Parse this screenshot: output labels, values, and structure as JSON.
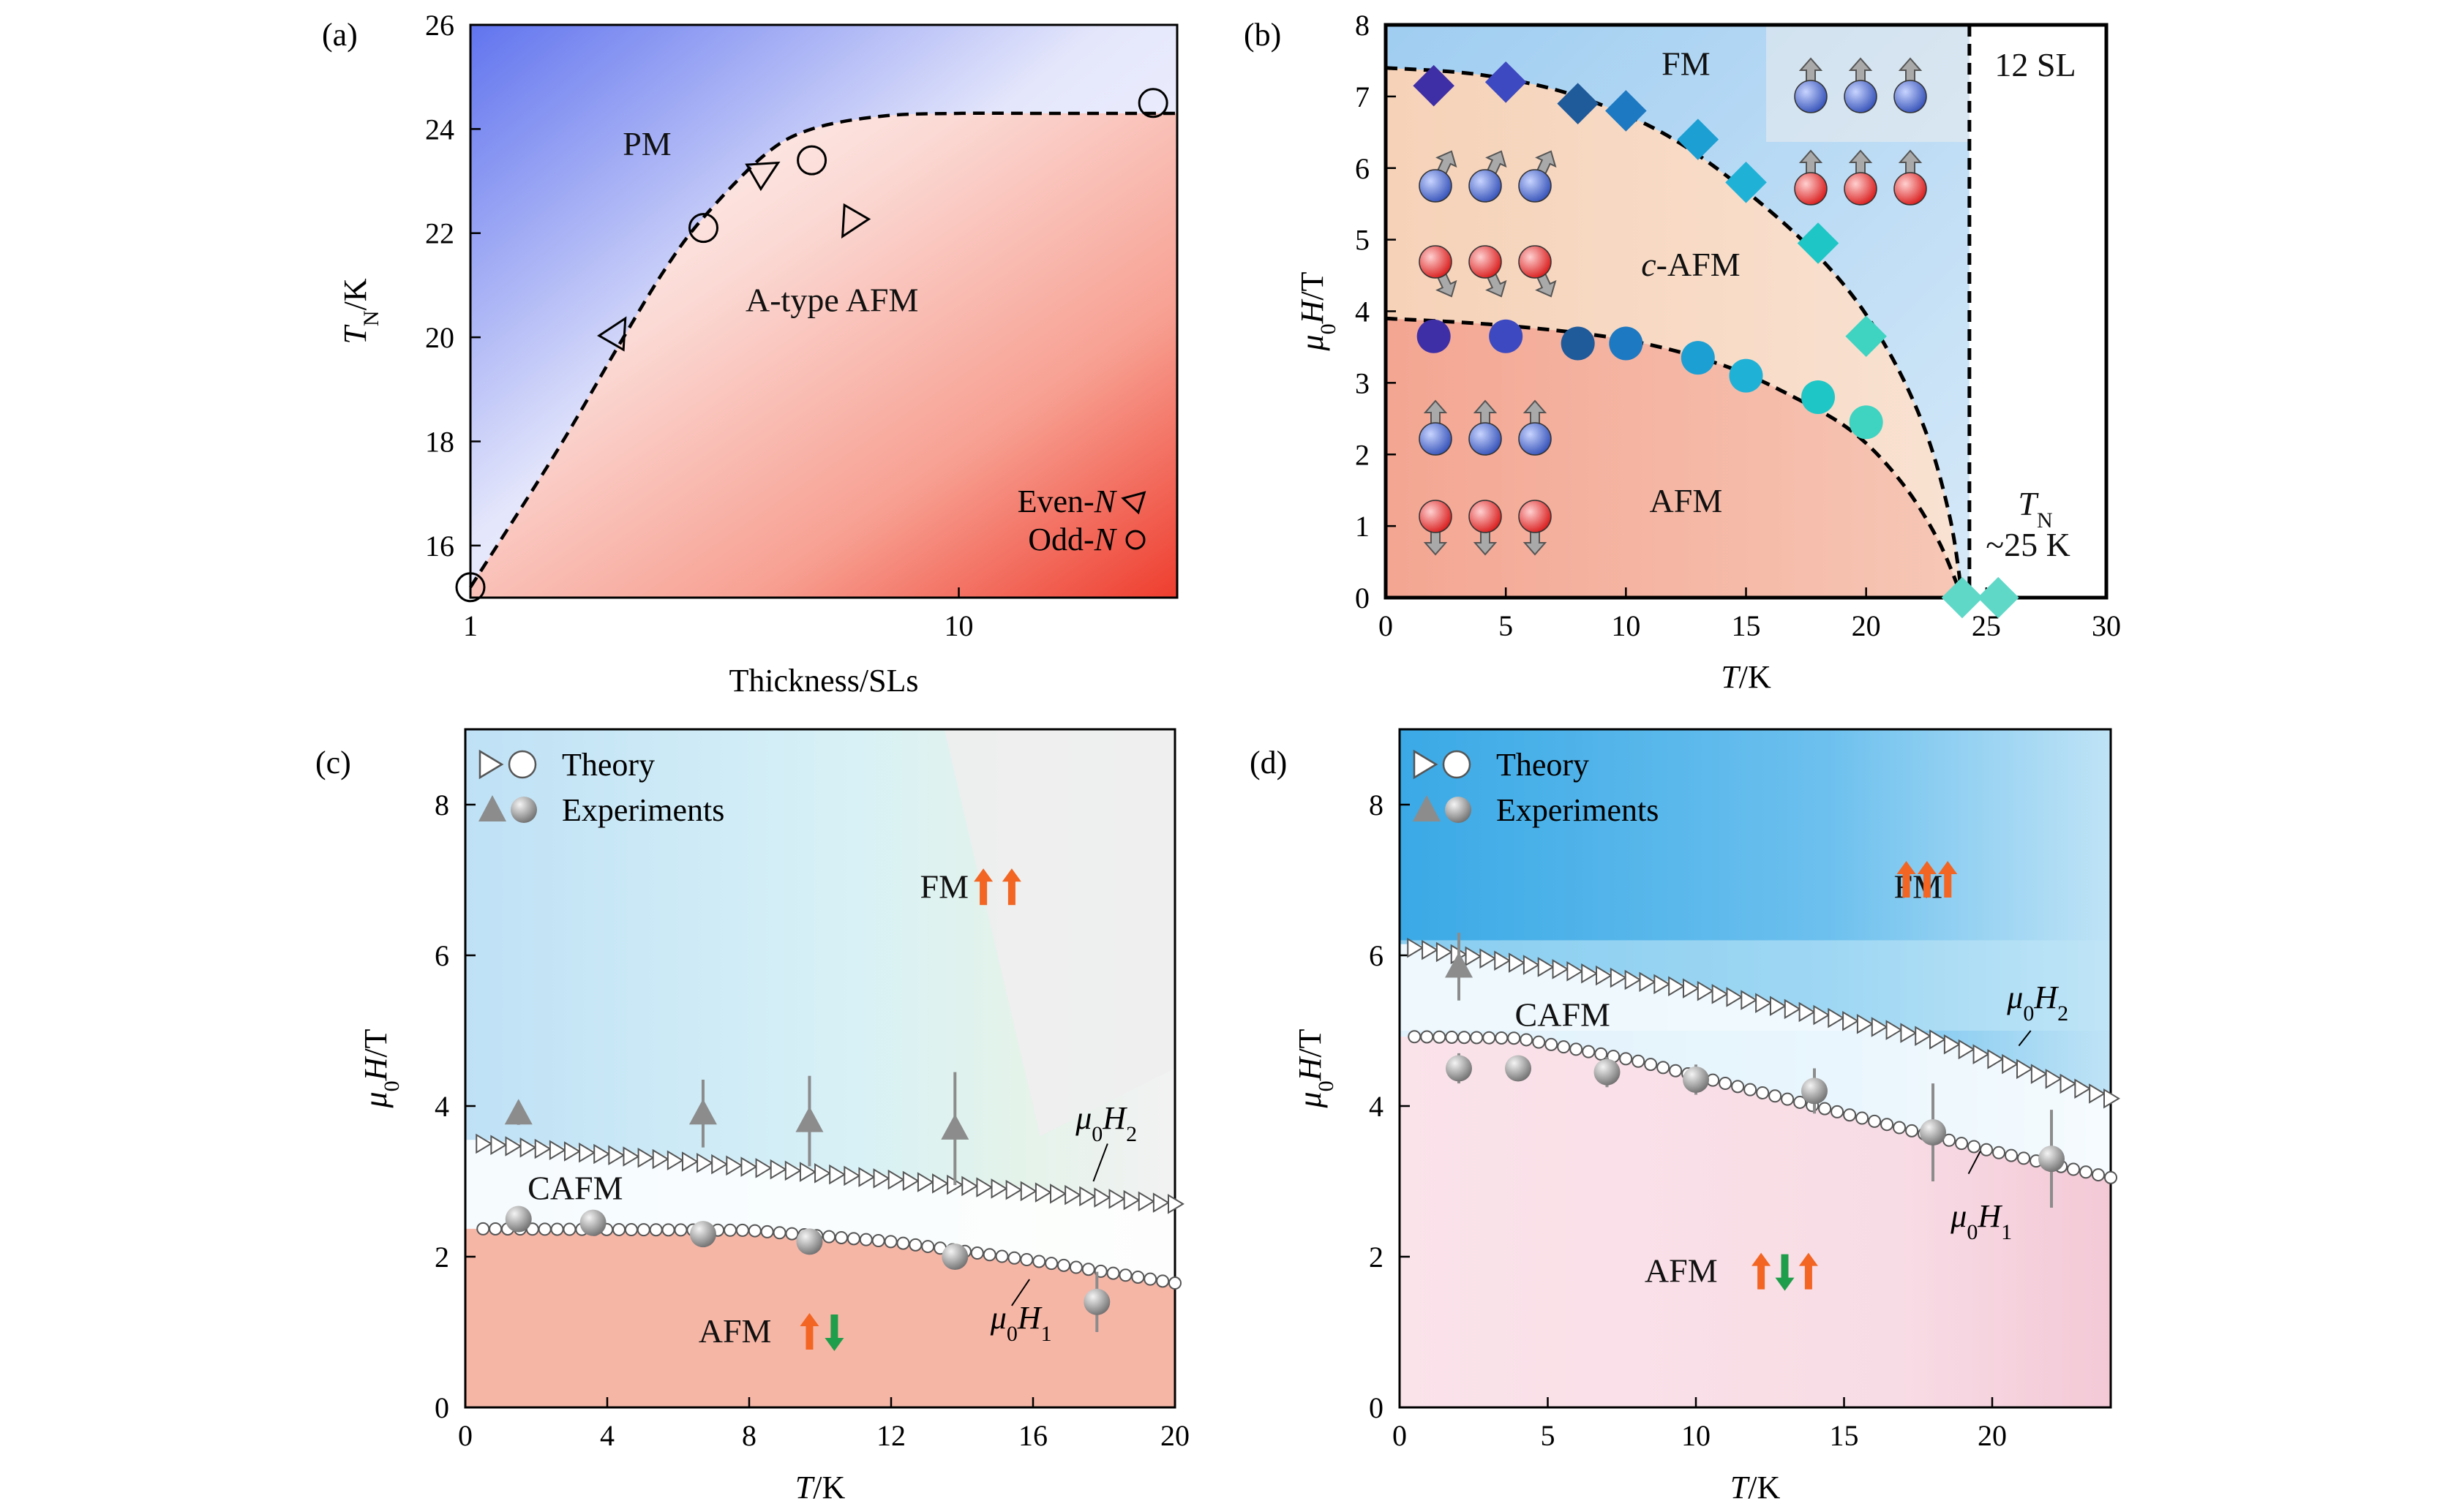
{
  "colors": {
    "pm_blue": "#6f7ff0",
    "afm_red": "#f04a3c",
    "fm_blue": "#a8d4f4",
    "cafm_peach": "#f7d9c2",
    "afm_salmon": "#f5b3a0",
    "afm_pink": "#f7d5de",
    "arrow_orange": "#f26522",
    "arrow_green": "#1e9e4a",
    "marker_gray": "#8c8c8c"
  },
  "chart_data": [
    {
      "panel_label": "(a)",
      "type": "scatter",
      "xlabel": "Thickness/SLs",
      "ylabel_main": "T",
      "ylabel_sub": "N",
      "ylabel_tail": "/K",
      "xscale": "log",
      "xlim": [
        1,
        28
      ],
      "ylim": [
        15,
        26
      ],
      "xticks": [
        1,
        10
      ],
      "xtick_labels": [
        "1",
        "10"
      ],
      "yticks": [
        16,
        18,
        20,
        22,
        24,
        26
      ],
      "ytick_labels": [
        "16",
        "18",
        "20",
        "22",
        "24",
        "26"
      ],
      "regions": [
        {
          "text": "PM",
          "x": 2.3,
          "y": 23.5
        },
        {
          "text": "A-type AFM",
          "x": 5.5,
          "y": 20.5
        }
      ],
      "series": [
        {
          "name": "Even-N",
          "marker": "triangle",
          "x": [
            2,
            4,
            6
          ],
          "y": [
            20.1,
            23.2,
            22.2
          ]
        },
        {
          "name": "Odd-N",
          "marker": "circle",
          "x": [
            1,
            3,
            5,
            25
          ],
          "y": [
            15.2,
            22.1,
            23.4,
            24.5
          ]
        }
      ],
      "boundary": {
        "x": [
          1,
          1.5,
          2,
          2.5,
          3,
          4,
          5,
          7,
          10,
          15,
          25
        ],
        "y": [
          15.2,
          17.8,
          19.8,
          21.3,
          22.3,
          23.5,
          24.0,
          24.25,
          24.3,
          24.3,
          24.3
        ]
      },
      "legend": {
        "even_prefix": "Even-",
        "odd_prefix": "Odd-",
        "var": "N"
      }
    },
    {
      "panel_label": "(b)",
      "type": "scatter",
      "xlabel_var": "T",
      "xlabel_tail": "/K",
      "ylabel": "μ0H/T",
      "xlim": [
        0,
        30
      ],
      "ylim": [
        0,
        8
      ],
      "xticks": [
        0,
        5,
        10,
        15,
        20,
        25,
        30
      ],
      "xtick_labels": [
        "0",
        "5",
        "10",
        "15",
        "20",
        "25",
        "30"
      ],
      "yticks": [
        0,
        1,
        2,
        3,
        4,
        5,
        6,
        7,
        8
      ],
      "ytick_labels": [
        "0",
        "1",
        "2",
        "3",
        "4",
        "5",
        "6",
        "7",
        "8"
      ],
      "regions": [
        {
          "text": "FM",
          "x": 12.5,
          "y": 7.4
        },
        {
          "text": "-AFM",
          "prefix": "c",
          "x": 12.7,
          "y": 4.6
        },
        {
          "text": "AFM",
          "x": 12.5,
          "y": 1.3
        }
      ],
      "annotation_sl": "12 SL",
      "annotation_tn_var": "T",
      "annotation_tn_sub": "N",
      "annotation_tn_value": "~25 K",
      "series": [
        {
          "name": "H2",
          "marker": "diamond",
          "x": [
            2,
            5,
            8,
            10,
            13,
            15,
            18,
            20
          ],
          "y": [
            7.15,
            7.2,
            6.9,
            6.8,
            6.4,
            5.8,
            4.95,
            3.65
          ]
        },
        {
          "name": "H1",
          "marker": "circle",
          "x": [
            2,
            5,
            8,
            10,
            13,
            15,
            18,
            20
          ],
          "y": [
            3.65,
            3.65,
            3.55,
            3.55,
            3.35,
            3.1,
            2.8,
            2.45
          ]
        },
        {
          "name": "TN",
          "marker": "diamond",
          "x": [
            24,
            25.5
          ],
          "y": [
            0,
            0
          ]
        }
      ],
      "curve_h2": {
        "x": [
          0,
          4,
          8,
          12,
          16,
          19,
          21,
          22.5,
          23.5,
          24
        ],
        "y": [
          7.4,
          7.3,
          7.0,
          6.4,
          5.4,
          4.4,
          3.4,
          2.3,
          1.1,
          0
        ]
      },
      "curve_h1": {
        "x": [
          0,
          5,
          10,
          14,
          17,
          19.5,
          21.5,
          23,
          24
        ],
        "y": [
          3.9,
          3.8,
          3.6,
          3.25,
          2.8,
          2.3,
          1.6,
          0.8,
          0
        ]
      },
      "tn_line_x": 24.3
    },
    {
      "panel_label": "(c)",
      "type": "scatter",
      "xlabel_var": "T",
      "xlabel_tail": "/K",
      "ylabel": "μ0H/T",
      "xlim": [
        0,
        20
      ],
      "ylim": [
        0,
        9
      ],
      "xticks": [
        0,
        4,
        8,
        12,
        16,
        20
      ],
      "xtick_labels": [
        "0",
        "4",
        "8",
        "12",
        "16",
        "20"
      ],
      "yticks": [
        0,
        2,
        4,
        6,
        8
      ],
      "ytick_labels": [
        "0",
        "2",
        "4",
        "6",
        "8"
      ],
      "legend": [
        "Theory",
        "Experiments"
      ],
      "regions": [
        {
          "text": "FM",
          "x": 13.5,
          "y": 6.9
        },
        {
          "text": "CAFM",
          "x": 3.1,
          "y": 2.9
        },
        {
          "text": "AFM",
          "x": 7.6,
          "y": 1.0
        }
      ],
      "curve_labels": {
        "h2": "μ0H2",
        "h1": "μ0H1"
      },
      "theory_h2": {
        "x": [
          0.5,
          20
        ],
        "y": [
          3.5,
          2.7
        ]
      },
      "theory_h1": {
        "x": [
          0.5,
          8,
          12,
          16,
          20
        ],
        "y": [
          2.37,
          2.35,
          2.2,
          1.95,
          1.65
        ]
      },
      "exp_h2": {
        "x": [
          1.5,
          6.7,
          9.7,
          13.8
        ],
        "y": [
          3.9,
          3.9,
          3.8,
          3.7
        ],
        "err": [
          0.15,
          0.45,
          0.6,
          0.75
        ]
      },
      "exp_h1": {
        "x": [
          1.5,
          3.6,
          6.7,
          9.7,
          13.8,
          17.8
        ],
        "y": [
          2.5,
          2.45,
          2.3,
          2.2,
          2.0,
          1.4
        ],
        "err": [
          0.12,
          0.1,
          0.12,
          0.15,
          0.15,
          0.4
        ]
      }
    },
    {
      "panel_label": "(d)",
      "type": "scatter",
      "xlabel_var": "T",
      "xlabel_tail": "/K",
      "ylabel": "μ0H/T",
      "xlim": [
        0,
        24
      ],
      "ylim": [
        0,
        9
      ],
      "xticks": [
        0,
        5,
        10,
        15,
        20
      ],
      "xtick_labels": [
        "0",
        "5",
        "10",
        "15",
        "20"
      ],
      "yticks": [
        0,
        2,
        4,
        6,
        8
      ],
      "ytick_labels": [
        "0",
        "2",
        "4",
        "6",
        "8"
      ],
      "legend": [
        "Theory",
        "Experiments"
      ],
      "regions": [
        {
          "text": "FM",
          "x": 17.5,
          "y": 6.9
        },
        {
          "text": "CAFM",
          "x": 5.5,
          "y": 5.2
        },
        {
          "text": "AFM",
          "x": 9.5,
          "y": 1.8
        }
      ],
      "curve_labels": {
        "h2": "μ0H2",
        "h1": "μ0H1"
      },
      "theory_h2": {
        "x": [
          0.5,
          10,
          18,
          24
        ],
        "y": [
          6.1,
          5.55,
          4.9,
          4.1
        ]
      },
      "theory_h1": {
        "x": [
          0.5,
          4,
          8,
          12,
          16,
          20,
          24
        ],
        "y": [
          4.92,
          4.9,
          4.6,
          4.2,
          3.8,
          3.4,
          3.05
        ]
      },
      "exp_h2": {
        "x": [
          2
        ],
        "y": [
          5.85
        ],
        "err": [
          0.45
        ]
      },
      "exp_h1": {
        "x": [
          2,
          4,
          7,
          10,
          14,
          18,
          22
        ],
        "y": [
          4.5,
          4.5,
          4.45,
          4.35,
          4.2,
          3.65,
          3.3
        ],
        "err": [
          0.2,
          0.1,
          0.2,
          0.2,
          0.3,
          0.65,
          0.65
        ]
      }
    }
  ]
}
